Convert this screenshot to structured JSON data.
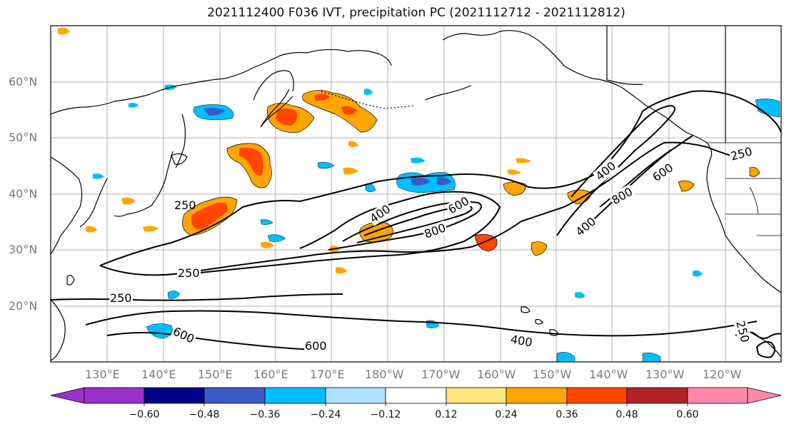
{
  "title": "2021112400 F036 IVT, precipitation PC (2021112712 - 2021112812)",
  "lat_labels": [
    "60°N",
    "50°N",
    "40°N",
    "30°N",
    "20°N"
  ],
  "lon_labels": [
    "130°E",
    "140°E",
    "150°E",
    "160°E",
    "170°E",
    "180°W",
    "170°W",
    "160°W",
    "150°W",
    "140°W",
    "130°W",
    "120°W"
  ],
  "colorbar": {
    "ticks": [
      "−0.60",
      "−0.48",
      "−0.36",
      "−0.24",
      "−0.12",
      "0.12",
      "0.24",
      "0.36",
      "0.48",
      "0.60"
    ],
    "colors": [
      "#9932cc",
      "#00008b",
      "#3a5bc7",
      "#00bfff",
      "#b0e0ff",
      "#ffffff",
      "#ffe680",
      "#ffa500",
      "#ff4500",
      "#b22222",
      "#ff88aa"
    ]
  },
  "contour_labels": [
    {
      "text": "250"
    },
    {
      "text": "250"
    },
    {
      "text": "250"
    },
    {
      "text": "400"
    },
    {
      "text": "600"
    },
    {
      "text": "800"
    },
    {
      "text": "400"
    },
    {
      "text": "800"
    },
    {
      "text": "600"
    },
    {
      "text": "400"
    },
    {
      "text": "250"
    },
    {
      "text": "600"
    },
    {
      "text": "600"
    },
    {
      "text": "400"
    },
    {
      "text": "250"
    }
  ]
}
